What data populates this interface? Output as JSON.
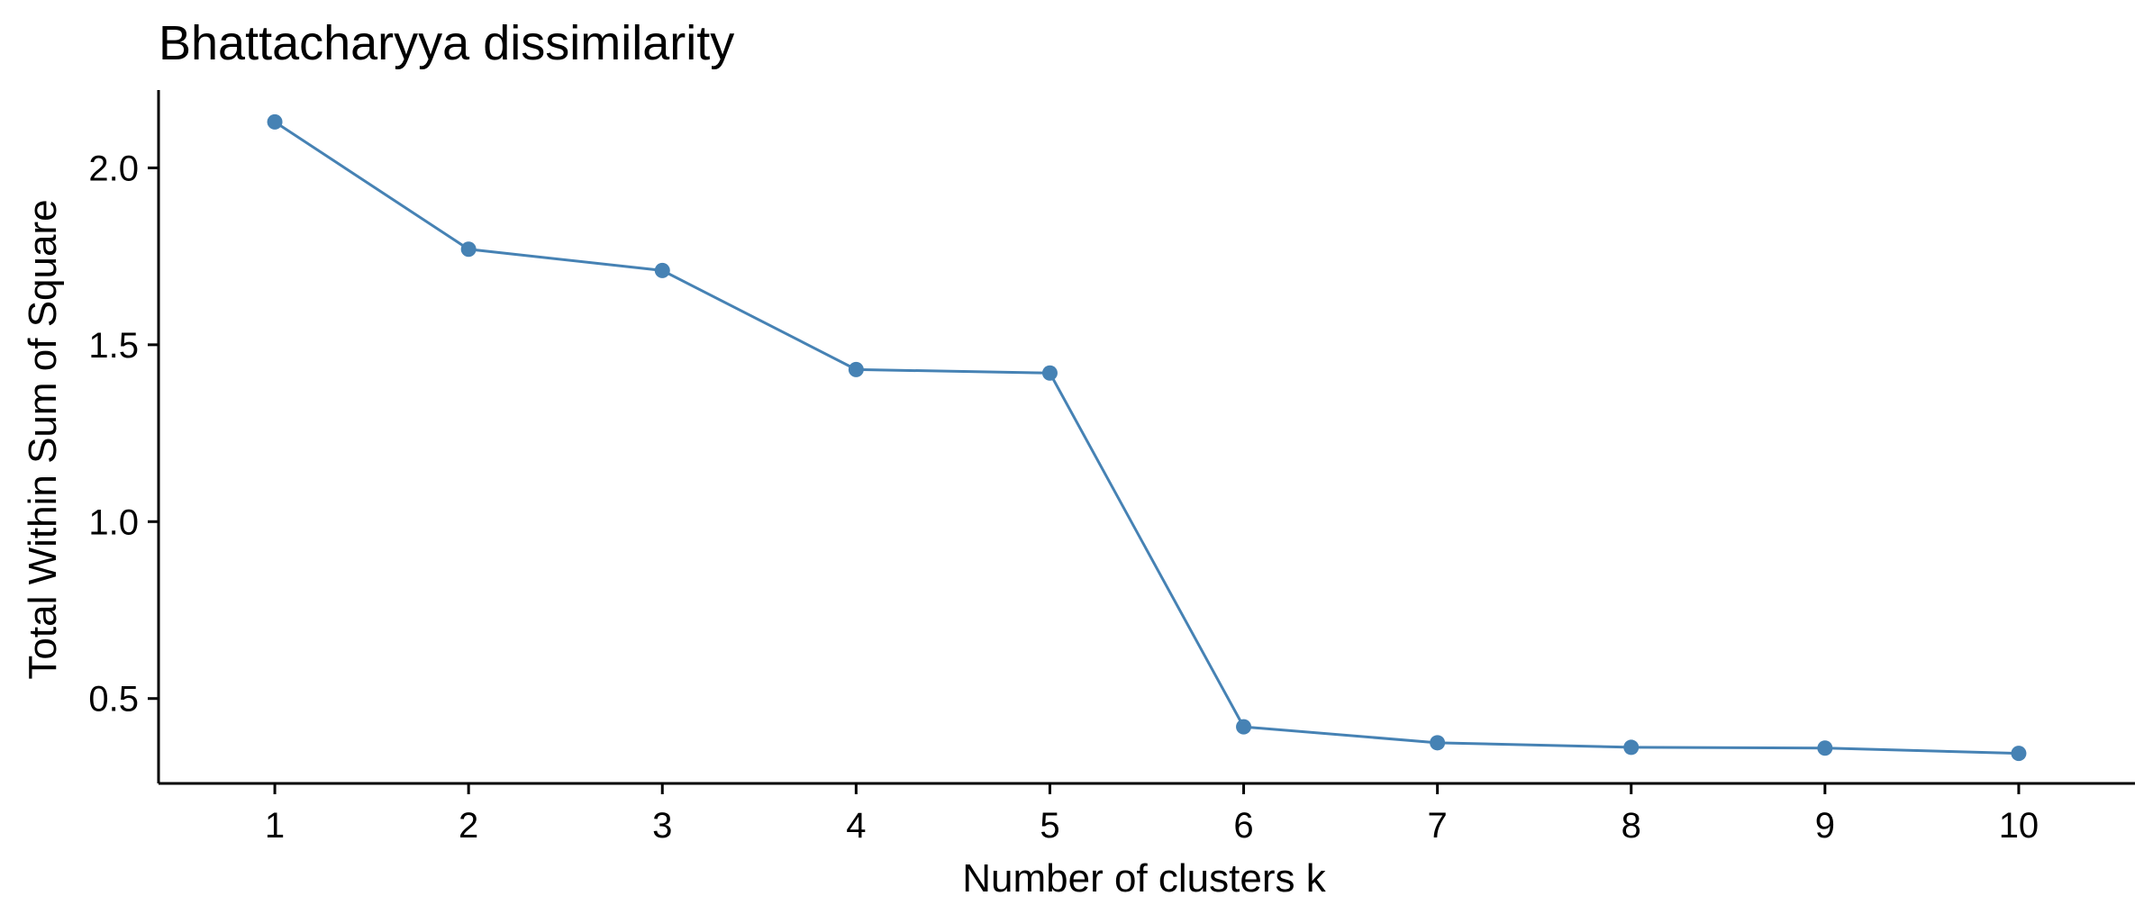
{
  "chart_data": {
    "type": "line",
    "title": "Bhattacharyya dissimilarity",
    "xlabel": "Number of clusters k",
    "ylabel": "Total Within Sum of Square",
    "x": [
      1,
      2,
      3,
      4,
      5,
      6,
      7,
      8,
      9,
      10
    ],
    "y": [
      2.13,
      1.77,
      1.71,
      1.43,
      1.42,
      0.42,
      0.375,
      0.362,
      0.36,
      0.345
    ],
    "x_tick_labels": [
      "1",
      "2",
      "3",
      "4",
      "5",
      "6",
      "7",
      "8",
      "9",
      "10"
    ],
    "y_ticks": [
      0.5,
      1.0,
      1.5,
      2.0
    ],
    "y_tick_labels": [
      "0.5",
      "1.0",
      "1.5",
      "2.0"
    ],
    "xlim": [
      0.4,
      10.6
    ],
    "ylim": [
      0.26,
      2.22
    ],
    "grid": false,
    "legend": "none",
    "colors": {
      "series": "#4682B4",
      "axis": "#000000"
    }
  }
}
